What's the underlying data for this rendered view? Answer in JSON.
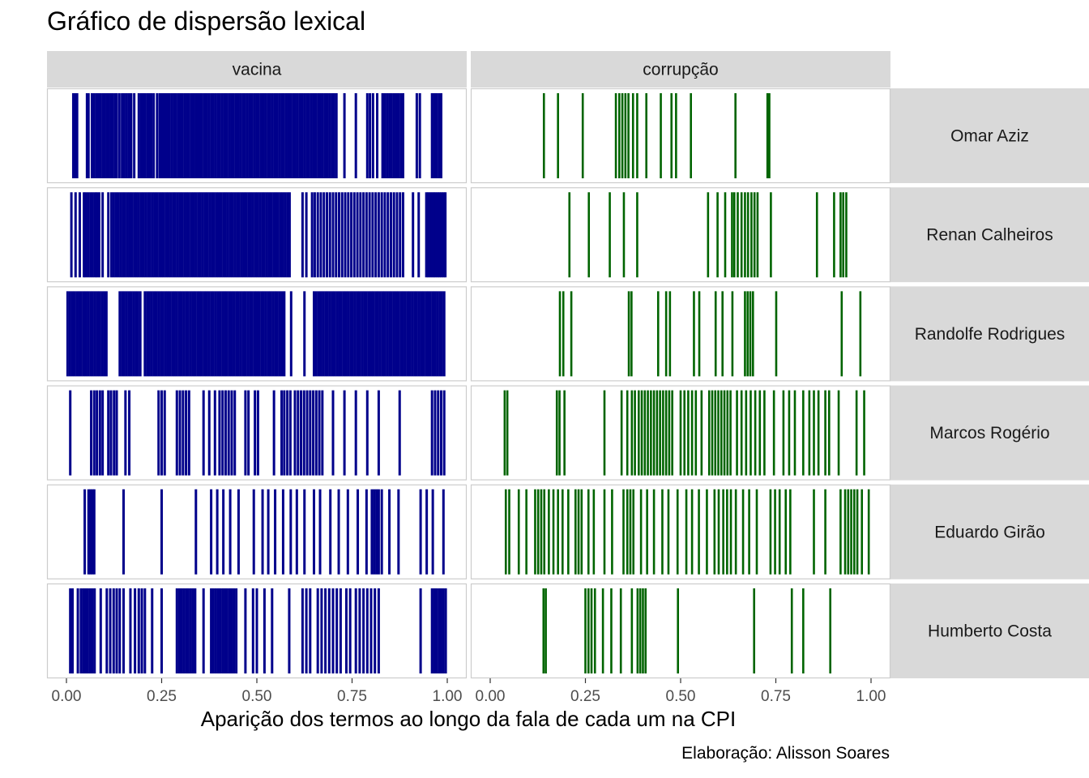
{
  "title": "Gráfico de dispersão lexical",
  "xlabel": "Aparição dos termos ao longo da fala de cada um na CPI",
  "caption": "Elaboração: Alisson Soares",
  "chart_data": {
    "type": "lexical-dispersion",
    "xlim": [
      0,
      1
    ],
    "x_ticks": [
      "0.00",
      "0.25",
      "0.50",
      "0.75",
      "1.00"
    ],
    "terms": [
      {
        "name": "vacina",
        "color": "#00008B"
      },
      {
        "name": "corrupção",
        "color": "#006400"
      }
    ],
    "speakers": [
      {
        "name": "Omar Aziz",
        "vacina": [
          0.018,
          0.023,
          0.028,
          0.054,
          0.058,
          0.067,
          0.073,
          0.079,
          0.084,
          0.089,
          0.095,
          0.101,
          0.107,
          0.11,
          0.116,
          0.122,
          0.128,
          0.132,
          0.139,
          0.146,
          0.152,
          0.158,
          0.164,
          0.17,
          0.178,
          0.19,
          0.196,
          0.201,
          0.206,
          0.212,
          0.218,
          0.223,
          0.229,
          0.238,
          0.245,
          0.25,
          0.255,
          0.259,
          0.264,
          0.27,
          0.276,
          0.282,
          0.288,
          0.294,
          0.299,
          0.304,
          0.31,
          0.316,
          0.322,
          0.328,
          0.334,
          0.34,
          0.345,
          0.35,
          0.356,
          0.362,
          0.368,
          0.374,
          0.38,
          0.385,
          0.391,
          0.397,
          0.403,
          0.409,
          0.415,
          0.421,
          0.427,
          0.433,
          0.439,
          0.445,
          0.451,
          0.457,
          0.463,
          0.469,
          0.475,
          0.481,
          0.487,
          0.493,
          0.499,
          0.505,
          0.511,
          0.517,
          0.523,
          0.529,
          0.535,
          0.541,
          0.547,
          0.553,
          0.559,
          0.565,
          0.571,
          0.577,
          0.583,
          0.589,
          0.595,
          0.601,
          0.607,
          0.613,
          0.619,
          0.625,
          0.631,
          0.637,
          0.643,
          0.649,
          0.655,
          0.661,
          0.667,
          0.673,
          0.679,
          0.685,
          0.691,
          0.697,
          0.703,
          0.709,
          0.73,
          0.76,
          0.79,
          0.797,
          0.805,
          0.816,
          0.83,
          0.836,
          0.842,
          0.848,
          0.854,
          0.86,
          0.866,
          0.872,
          0.878,
          0.884,
          0.92,
          0.928,
          0.96,
          0.966,
          0.972,
          0.978,
          0.984
        ],
        "corrupcao": [
          0.141,
          0.178,
          0.243,
          0.33,
          0.339,
          0.347,
          0.355,
          0.363,
          0.375,
          0.386,
          0.41,
          0.448,
          0.476,
          0.488,
          0.527,
          0.644,
          0.728,
          0.733
        ]
      },
      {
        "name": "Renan Calheiros",
        "vacina": [
          0.013,
          0.024,
          0.035,
          0.046,
          0.051,
          0.057,
          0.063,
          0.069,
          0.075,
          0.08,
          0.086,
          0.095,
          0.11,
          0.118,
          0.124,
          0.13,
          0.136,
          0.142,
          0.148,
          0.154,
          0.16,
          0.166,
          0.172,
          0.178,
          0.184,
          0.19,
          0.196,
          0.202,
          0.208,
          0.214,
          0.22,
          0.226,
          0.232,
          0.238,
          0.244,
          0.25,
          0.256,
          0.262,
          0.268,
          0.274,
          0.28,
          0.286,
          0.292,
          0.298,
          0.304,
          0.31,
          0.316,
          0.322,
          0.328,
          0.334,
          0.34,
          0.346,
          0.352,
          0.358,
          0.364,
          0.37,
          0.376,
          0.382,
          0.388,
          0.394,
          0.4,
          0.406,
          0.412,
          0.418,
          0.424,
          0.43,
          0.436,
          0.442,
          0.448,
          0.454,
          0.46,
          0.466,
          0.472,
          0.478,
          0.484,
          0.49,
          0.496,
          0.502,
          0.508,
          0.514,
          0.52,
          0.526,
          0.532,
          0.538,
          0.544,
          0.55,
          0.556,
          0.562,
          0.568,
          0.574,
          0.58,
          0.586,
          0.62,
          0.63,
          0.645,
          0.652,
          0.66,
          0.668,
          0.676,
          0.684,
          0.692,
          0.7,
          0.708,
          0.716,
          0.724,
          0.732,
          0.74,
          0.748,
          0.756,
          0.764,
          0.772,
          0.78,
          0.788,
          0.796,
          0.804,
          0.812,
          0.82,
          0.828,
          0.836,
          0.844,
          0.852,
          0.86,
          0.868,
          0.876,
          0.884,
          0.91,
          0.925,
          0.945,
          0.95,
          0.955,
          0.96,
          0.965,
          0.97,
          0.975,
          0.98,
          0.985,
          0.99,
          0.995
        ],
        "corrupcao": [
          0.208,
          0.259,
          0.314,
          0.351,
          0.386,
          0.572,
          0.597,
          0.617,
          0.635,
          0.641,
          0.65,
          0.66,
          0.669,
          0.677,
          0.686,
          0.694,
          0.702,
          0.737,
          0.858,
          0.903,
          0.92,
          0.927,
          0.935
        ]
      },
      {
        "name": "Randolfe Rodrigues",
        "vacina": [
          0.003,
          0.009,
          0.015,
          0.021,
          0.027,
          0.033,
          0.039,
          0.045,
          0.051,
          0.057,
          0.063,
          0.069,
          0.075,
          0.081,
          0.087,
          0.093,
          0.099,
          0.105,
          0.14,
          0.146,
          0.152,
          0.158,
          0.164,
          0.17,
          0.176,
          0.182,
          0.188,
          0.194,
          0.206,
          0.212,
          0.218,
          0.224,
          0.23,
          0.236,
          0.242,
          0.248,
          0.254,
          0.26,
          0.266,
          0.272,
          0.278,
          0.284,
          0.29,
          0.296,
          0.302,
          0.308,
          0.314,
          0.32,
          0.326,
          0.332,
          0.338,
          0.344,
          0.35,
          0.356,
          0.362,
          0.368,
          0.374,
          0.38,
          0.386,
          0.392,
          0.398,
          0.404,
          0.41,
          0.416,
          0.422,
          0.428,
          0.434,
          0.44,
          0.446,
          0.452,
          0.458,
          0.464,
          0.47,
          0.476,
          0.482,
          0.488,
          0.494,
          0.5,
          0.506,
          0.512,
          0.518,
          0.524,
          0.53,
          0.536,
          0.542,
          0.548,
          0.554,
          0.56,
          0.566,
          0.572,
          0.59,
          0.625,
          0.65,
          0.656,
          0.662,
          0.668,
          0.674,
          0.68,
          0.686,
          0.692,
          0.698,
          0.704,
          0.71,
          0.716,
          0.722,
          0.728,
          0.734,
          0.74,
          0.746,
          0.752,
          0.758,
          0.764,
          0.77,
          0.776,
          0.782,
          0.788,
          0.794,
          0.8,
          0.806,
          0.812,
          0.818,
          0.824,
          0.83,
          0.836,
          0.842,
          0.848,
          0.854,
          0.86,
          0.866,
          0.872,
          0.878,
          0.884,
          0.89,
          0.896,
          0.902,
          0.908,
          0.914,
          0.92,
          0.926,
          0.932,
          0.938,
          0.944,
          0.95,
          0.956,
          0.962,
          0.968,
          0.974,
          0.98,
          0.986,
          0.992
        ],
        "corrupcao": [
          0.183,
          0.192,
          0.213,
          0.364,
          0.371,
          0.441,
          0.462,
          0.472,
          0.535,
          0.549,
          0.592,
          0.61,
          0.636,
          0.669,
          0.676,
          0.683,
          0.69,
          0.751,
          0.923,
          0.972
        ]
      },
      {
        "name": "Marcos Rogério",
        "vacina": [
          0.01,
          0.065,
          0.073,
          0.08,
          0.088,
          0.095,
          0.11,
          0.117,
          0.125,
          0.132,
          0.155,
          0.165,
          0.242,
          0.25,
          0.258,
          0.29,
          0.298,
          0.306,
          0.314,
          0.322,
          0.36,
          0.375,
          0.39,
          0.402,
          0.41,
          0.418,
          0.426,
          0.434,
          0.442,
          0.47,
          0.478,
          0.495,
          0.503,
          0.545,
          0.565,
          0.572,
          0.58,
          0.588,
          0.6,
          0.608,
          0.616,
          0.624,
          0.632,
          0.64,
          0.648,
          0.656,
          0.664,
          0.672,
          0.7,
          0.73,
          0.76,
          0.79,
          0.82,
          0.875,
          0.96,
          0.968,
          0.976,
          0.984,
          0.992
        ],
        "corrupcao": [
          0.038,
          0.045,
          0.175,
          0.182,
          0.195,
          0.3,
          0.345,
          0.36,
          0.372,
          0.38,
          0.39,
          0.398,
          0.406,
          0.414,
          0.422,
          0.43,
          0.438,
          0.446,
          0.454,
          0.462,
          0.47,
          0.478,
          0.5,
          0.51,
          0.52,
          0.53,
          0.54,
          0.555,
          0.575,
          0.583,
          0.591,
          0.599,
          0.607,
          0.615,
          0.623,
          0.631,
          0.648,
          0.66,
          0.672,
          0.684,
          0.696,
          0.708,
          0.72,
          0.745,
          0.77,
          0.785,
          0.8,
          0.822,
          0.838,
          0.85,
          0.862,
          0.88,
          0.89,
          0.915,
          0.962,
          0.982
        ]
      },
      {
        "name": "Eduardo Girão",
        "vacina": [
          0.048,
          0.058,
          0.063,
          0.068,
          0.073,
          0.15,
          0.25,
          0.34,
          0.38,
          0.396,
          0.412,
          0.43,
          0.452,
          0.492,
          0.515,
          0.53,
          0.548,
          0.569,
          0.589,
          0.605,
          0.625,
          0.65,
          0.666,
          0.693,
          0.715,
          0.739,
          0.765,
          0.788,
          0.802,
          0.808,
          0.814,
          0.82,
          0.828,
          0.848,
          0.872,
          0.93,
          0.946,
          0.962,
          0.99
        ],
        "corrupcao": [
          0.041,
          0.05,
          0.075,
          0.095,
          0.118,
          0.126,
          0.134,
          0.142,
          0.154,
          0.166,
          0.178,
          0.19,
          0.205,
          0.224,
          0.232,
          0.24,
          0.258,
          0.272,
          0.3,
          0.32,
          0.35,
          0.36,
          0.368,
          0.376,
          0.396,
          0.412,
          0.43,
          0.452,
          0.468,
          0.492,
          0.515,
          0.53,
          0.548,
          0.569,
          0.589,
          0.6,
          0.612,
          0.622,
          0.632,
          0.645,
          0.664,
          0.68,
          0.7,
          0.736,
          0.748,
          0.76,
          0.776,
          0.788,
          0.85,
          0.88,
          0.92,
          0.932,
          0.94,
          0.948,
          0.956,
          0.964,
          0.976,
          0.994
        ]
      },
      {
        "name": "Humberto Costa",
        "vacina": [
          0.01,
          0.016,
          0.03,
          0.038,
          0.044,
          0.05,
          0.056,
          0.062,
          0.068,
          0.074,
          0.09,
          0.106,
          0.115,
          0.124,
          0.132,
          0.14,
          0.15,
          0.168,
          0.18,
          0.19,
          0.198,
          0.206,
          0.225,
          0.25,
          0.29,
          0.296,
          0.302,
          0.308,
          0.314,
          0.32,
          0.326,
          0.332,
          0.338,
          0.36,
          0.38,
          0.386,
          0.392,
          0.398,
          0.404,
          0.41,
          0.416,
          0.422,
          0.428,
          0.434,
          0.44,
          0.446,
          0.47,
          0.49,
          0.5,
          0.52,
          0.54,
          0.585,
          0.62,
          0.63,
          0.64,
          0.66,
          0.67,
          0.68,
          0.69,
          0.7,
          0.71,
          0.72,
          0.735,
          0.745,
          0.76,
          0.77,
          0.78,
          0.79,
          0.8,
          0.81,
          0.82,
          0.93,
          0.96,
          0.966,
          0.972,
          0.978,
          0.984,
          0.99,
          0.996
        ],
        "corrupcao": [
          0.14,
          0.146,
          0.25,
          0.258,
          0.266,
          0.275,
          0.296,
          0.318,
          0.343,
          0.372,
          0.387,
          0.394,
          0.401,
          0.408,
          0.493,
          0.693,
          0.792,
          0.822,
          0.893
        ]
      }
    ]
  }
}
